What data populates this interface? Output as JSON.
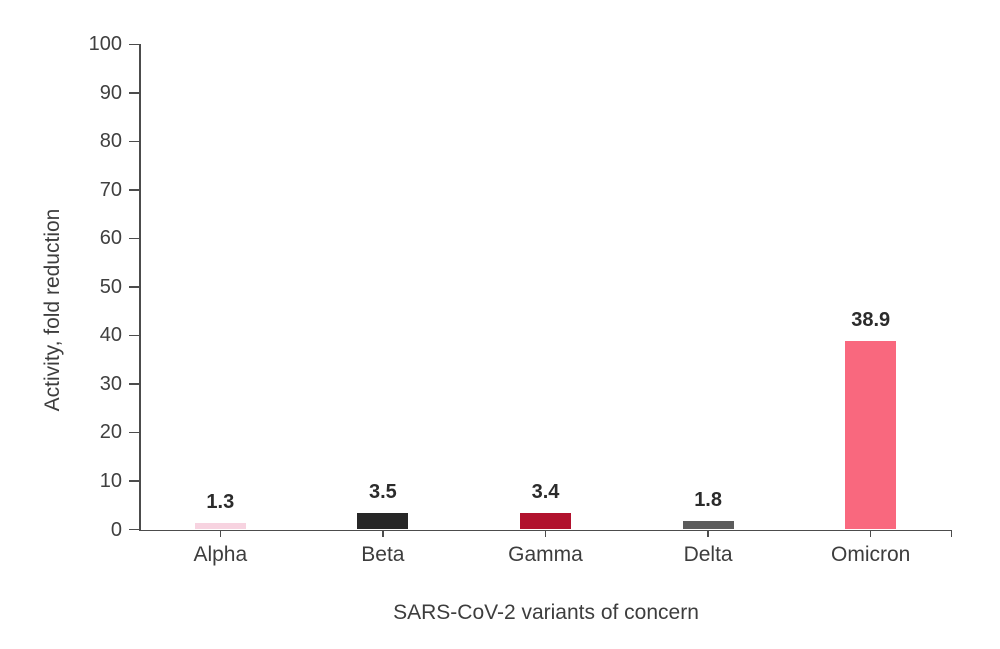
{
  "chart_data": {
    "type": "bar",
    "title": "",
    "categories": [
      "Alpha",
      "Beta",
      "Gamma",
      "Delta",
      "Omicron"
    ],
    "values": [
      1.3,
      3.5,
      3.4,
      1.8,
      38.9
    ],
    "value_labels": [
      "1.3",
      "3.5",
      "3.4",
      "1.8",
      "38.9"
    ],
    "bar_colors": [
      "#f7d3e0",
      "#272727",
      "#b1122e",
      "#5c5c5c",
      "#f9687e"
    ],
    "xlabel": "SARS-CoV-2 variants of concern",
    "ylabel": "Activity, fold reduction",
    "ylim": [
      0,
      100
    ],
    "yticks": [
      0,
      10,
      20,
      30,
      40,
      50,
      60,
      70,
      80,
      90,
      100
    ],
    "grid": false,
    "legend": false
  },
  "style": {
    "background": "#ffffff",
    "axis_color": "#4c4c4c",
    "tick_label_color": "#404040",
    "category_label_color": "#3d3d3d",
    "axis_title_color": "#3d3d3d",
    "value_label_color": "#2b2b2b"
  }
}
